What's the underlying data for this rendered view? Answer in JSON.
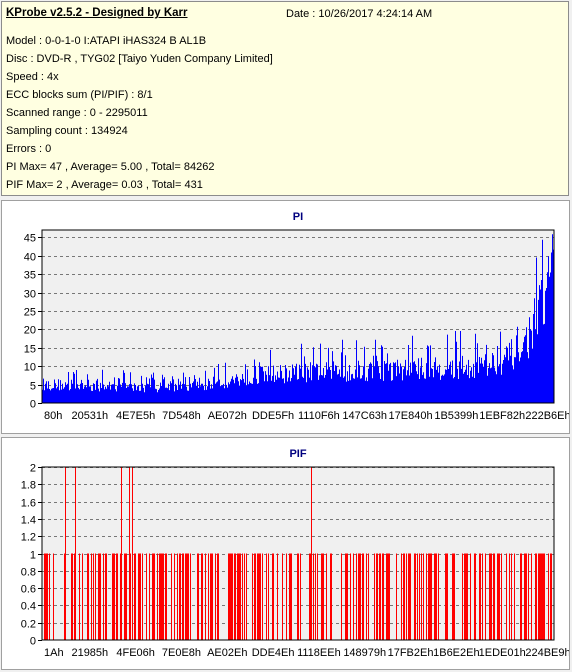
{
  "info": {
    "title": "KProbe v2.5.2 - Designed by Karr",
    "date": "Date : 10/26/2017 4:24:14 AM",
    "lines": [
      "Model : 0-0-1-0 I:ATAPI  iHAS324  B      AL1B",
      "Disc : DVD-R , TYG02 [Taiyo Yuden Company Limited]",
      "Speed : 4x",
      "ECC blocks sum (PI/PIF) : 8/1",
      "Scanned range : 0 - 2295011",
      "Sampling count : 134924",
      "Errors : 0",
      "PI Max= 47 , Average= 5.00 , Total= 84262",
      "PIF Max= 2 , Average= 0.03 , Total= 431"
    ]
  },
  "chart_data": [
    {
      "type": "area",
      "title": "PI",
      "color": "#0000ff",
      "ylim": [
        0,
        47
      ],
      "yticks": [
        0,
        5,
        10,
        15,
        20,
        25,
        30,
        35,
        40,
        45
      ],
      "xtick_labels": [
        "80h",
        "20531h",
        "4E7E5h",
        "7D548h",
        "AE072h",
        "DDE5Fh",
        "1110F6h",
        "147C63h",
        "17E840h",
        "1B5399h",
        "1EBF82h",
        "222B6Eh"
      ],
      "grid": true,
      "series_summary": {
        "max": 47,
        "average": 5.0,
        "total": 84262
      },
      "profile": [
        [
          0,
          6
        ],
        [
          0.04,
          6
        ],
        [
          0.2,
          5
        ],
        [
          0.3,
          5.5
        ],
        [
          0.35,
          7
        ],
        [
          0.42,
          9
        ],
        [
          0.5,
          10
        ],
        [
          0.6,
          10.5
        ],
        [
          0.7,
          11
        ],
        [
          0.8,
          11.5
        ],
        [
          0.85,
          12
        ],
        [
          0.9,
          14
        ],
        [
          0.94,
          18
        ],
        [
          0.97,
          28
        ],
        [
          0.99,
          38
        ],
        [
          1,
          47
        ]
      ]
    },
    {
      "type": "bar",
      "title": "PIF",
      "color": "#ff0000",
      "ylim": [
        0,
        2
      ],
      "yticks": [
        0,
        0.2,
        0.4,
        0.6,
        0.8,
        1,
        1.2,
        1.4,
        1.6,
        1.8,
        2
      ],
      "ytick_labels": [
        "0",
        "0.2",
        "0.4",
        "0.6",
        "0.8",
        "1",
        "1.2",
        "1.4",
        "1.6",
        "1.8",
        "2"
      ],
      "xtick_labels": [
        "1Ah",
        "21985h",
        "4FE06h",
        "7E0E8h",
        "AE02Eh",
        "DDE4Eh",
        "1118EEh",
        "148979h",
        "17FB2Eh",
        "1B6E2Eh",
        "1EDE01h",
        "224BE9h"
      ],
      "grid": true,
      "series_summary": {
        "max": 2,
        "average": 0.03,
        "total": 431
      },
      "value_2_positions": [
        0.045,
        0.065,
        0.155,
        0.17,
        0.175,
        0.525
      ]
    }
  ]
}
